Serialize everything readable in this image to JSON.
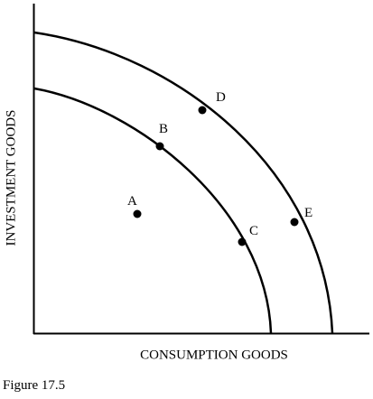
{
  "figure": {
    "caption": "Figure 17.5"
  },
  "chart_data": {
    "type": "diagram",
    "xlabel": "CONSUMPTION GOODS",
    "ylabel": "INVESTMENT GOODS",
    "curves": [
      {
        "id": "inner-ppf",
        "points": [
          "B",
          "C"
        ]
      },
      {
        "id": "outer-ppf",
        "points": [
          "D",
          "E"
        ]
      }
    ],
    "points": [
      {
        "label": "A",
        "on_curve": "inside"
      },
      {
        "label": "B",
        "on_curve": "inner-ppf"
      },
      {
        "label": "C",
        "on_curve": "inner-ppf"
      },
      {
        "label": "D",
        "on_curve": "outer-ppf"
      },
      {
        "label": "E",
        "on_curve": "outer-ppf"
      }
    ]
  }
}
